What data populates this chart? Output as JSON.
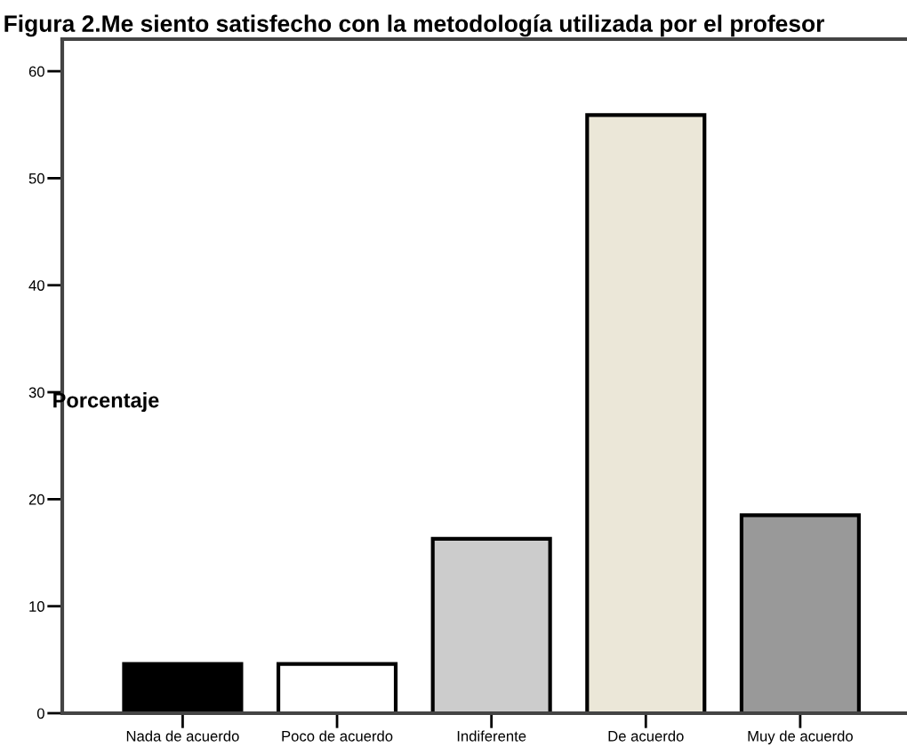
{
  "chart_data": {
    "type": "bar",
    "title": "Figura 2.Me siento satisfecho con la metodología utilizada por el profesor",
    "ylabel": "Porcentaje",
    "categories": [
      "Nada de acuerdo",
      "Poco de acuerdo",
      "Indiferente",
      "De acuerdo",
      "Muy de acuerdo"
    ],
    "values": [
      4.6,
      4.6,
      16.3,
      55.9,
      18.5
    ],
    "colors": [
      "#000000",
      "#ffffff",
      "#cccccc",
      "#ebe7d8",
      "#999999"
    ],
    "ylim": [
      0,
      63
    ],
    "yticks": [
      0,
      10,
      20,
      30,
      40,
      50,
      60
    ],
    "grid": false
  }
}
